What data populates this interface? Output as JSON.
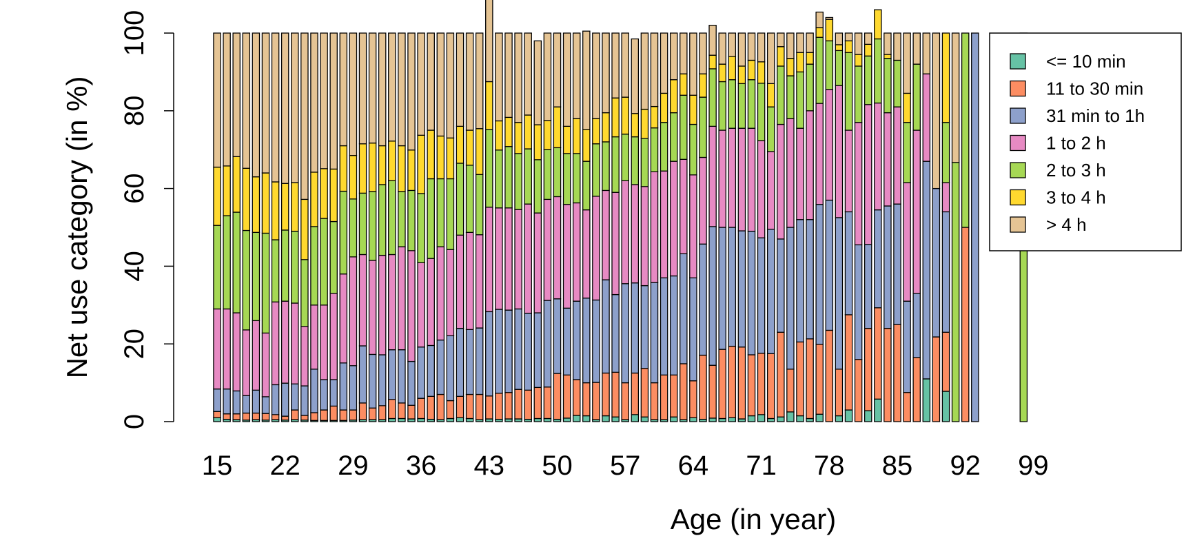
{
  "chart_data": {
    "type": "bar",
    "stacked": true,
    "xlabel": "Age (in year)",
    "ylabel": "Net use category (in %)",
    "ylim": [
      0,
      100
    ],
    "y_ticks": [
      0,
      20,
      40,
      60,
      80,
      100
    ],
    "x_tick_labels": [
      "15",
      "22",
      "29",
      "36",
      "43",
      "50",
      "57",
      "64",
      "71",
      "78",
      "85",
      "92",
      "99"
    ],
    "categories": [
      15,
      16,
      17,
      18,
      19,
      20,
      21,
      22,
      23,
      24,
      25,
      26,
      27,
      28,
      29,
      30,
      31,
      32,
      33,
      34,
      35,
      36,
      37,
      38,
      39,
      40,
      41,
      42,
      43,
      44,
      45,
      46,
      47,
      48,
      49,
      50,
      51,
      52,
      53,
      54,
      55,
      56,
      57,
      58,
      59,
      60,
      61,
      62,
      63,
      64,
      65,
      66,
      67,
      68,
      69,
      70,
      71,
      72,
      73,
      74,
      75,
      76,
      77,
      78,
      79,
      80,
      81,
      82,
      83,
      84,
      85,
      86,
      87,
      88,
      89,
      90,
      91,
      92,
      93,
      94,
      95,
      96,
      97,
      98,
      99
    ],
    "grid": false,
    "legend_position": "right",
    "series": [
      {
        "name": "<= 10 min",
        "color": "#66C2A5",
        "values": [
          1.0,
          0.6,
          0.5,
          0.4,
          0.5,
          0.4,
          0.5,
          0.4,
          0.5,
          0.4,
          0.3,
          0.3,
          0.3,
          0.3,
          0.4,
          0.5,
          0.5,
          0.5,
          0.8,
          0.8,
          0.7,
          0.8,
          0.6,
          0.5,
          0.8,
          1.0,
          0.8,
          0.5,
          0.7,
          0.6,
          0.7,
          0.7,
          0.6,
          0.8,
          0.8,
          0.6,
          0.9,
          1.6,
          1.5,
          0.5,
          1.5,
          1.2,
          0.5,
          1.8,
          1.2,
          0.5,
          0.5,
          1.2,
          0.5,
          1.0,
          0.6,
          0.9,
          0.8,
          1.0,
          0.7,
          1.5,
          1.8,
          0.8,
          1.2,
          2.5,
          1.5,
          0.8,
          1.9,
          0,
          1.5,
          3.0,
          0,
          2.8,
          5.8,
          0,
          0,
          0,
          0,
          11.0,
          0,
          7.8,
          0,
          0,
          0,
          0,
          0,
          0,
          0,
          0,
          0
        ]
      },
      {
        "name": "11 to 30 min",
        "color": "#FC8D62",
        "values": [
          1.6,
          1.4,
          1.5,
          1.8,
          1.7,
          1.7,
          1.3,
          1.0,
          2.5,
          1.2,
          2.0,
          2.7,
          3.7,
          2.7,
          2.6,
          4.3,
          3.0,
          3.6,
          4.9,
          4.0,
          3.5,
          5.2,
          5.9,
          6.5,
          4.6,
          5.5,
          6.2,
          6.5,
          5.9,
          6.7,
          6.8,
          7.6,
          7.5,
          8.0,
          8.1,
          11.8,
          11.1,
          9.2,
          8.5,
          9.6,
          11.0,
          11.5,
          9.5,
          10.7,
          12.5,
          9.5,
          11.5,
          10.8,
          14.4,
          9.5,
          16.5,
          13.6,
          17.8,
          18.4,
          18.5,
          15.7,
          15.8,
          16.7,
          21.8,
          11.0,
          19.0,
          20.5,
          18.0,
          23.5,
          12.0,
          24.5,
          16.0,
          21.2,
          23.5,
          24.0,
          25.0,
          7.5,
          16.5,
          0,
          21.8,
          15.2,
          0,
          50.0,
          0,
          0,
          0,
          0,
          0,
          0,
          0
        ]
      },
      {
        "name": "31 min to 1h",
        "color": "#8DA0CB",
        "values": [
          5.8,
          6.4,
          5.9,
          4.5,
          5.9,
          4.3,
          7.7,
          8.5,
          6.7,
          7.6,
          11.2,
          7.8,
          6.8,
          12.1,
          11.4,
          14.7,
          13.8,
          13.1,
          12.8,
          13.7,
          11.3,
          13.2,
          13.1,
          14.0,
          16.7,
          17.5,
          16.7,
          17.1,
          21.7,
          21.6,
          21.2,
          20.7,
          19.8,
          19.2,
          22.3,
          19.2,
          17.2,
          20.2,
          21.8,
          21.2,
          24.0,
          20.0,
          25.5,
          23.2,
          21.3,
          25.8,
          25.0,
          25.5,
          28.3,
          26.5,
          28.6,
          35.7,
          31.4,
          30.6,
          29.9,
          31.8,
          29.7,
          32.0,
          24.0,
          36.5,
          31.5,
          30.7,
          36.0,
          33.5,
          39.0,
          26.5,
          29.5,
          21.6,
          25.2,
          31.5,
          31.0,
          23.5,
          16.5,
          56.0,
          38.2,
          31.0,
          0,
          0,
          100.0,
          0,
          0,
          0,
          0,
          0,
          0
        ]
      },
      {
        "name": "1 to 2 h",
        "color": "#E78AC3",
        "values": [
          20.6,
          20.6,
          20.1,
          16.9,
          17.9,
          16.4,
          21.3,
          21.1,
          20.8,
          15.3,
          16.5,
          19.2,
          22.2,
          22.9,
          28.0,
          23.5,
          24.2,
          25.6,
          24.5,
          26.5,
          28.5,
          21.7,
          22.4,
          24.0,
          22.2,
          24.0,
          25.0,
          24.0,
          26.9,
          26.1,
          26.3,
          25.6,
          28.1,
          25.7,
          26.0,
          26.3,
          26.7,
          25.3,
          22.7,
          26.7,
          23.0,
          26.3,
          26.5,
          25.3,
          25.5,
          28.5,
          27.5,
          29.5,
          24.3,
          26.5,
          22.3,
          25.8,
          25.0,
          25.5,
          26.4,
          26.5,
          25.0,
          20.0,
          29.5,
          28.0,
          23.5,
          28.0,
          26.0,
          28.5,
          34.0,
          21.0,
          31.5,
          36.0,
          27.5,
          24.0,
          25.0,
          30.5,
          42.0,
          22.5,
          0,
          7.5,
          0,
          0,
          0,
          0,
          0,
          0,
          0,
          0,
          0
        ]
      },
      {
        "name": "2 to 3 h",
        "color": "#A6D854",
        "values": [
          21.5,
          24.0,
          25.9,
          25.6,
          22.7,
          25.7,
          16.0,
          18.3,
          18.5,
          17.2,
          20.2,
          22.3,
          18.5,
          21.3,
          14.9,
          15.8,
          17.7,
          18.2,
          19.0,
          14.2,
          15.5,
          17.8,
          20.5,
          17.5,
          18.2,
          18.5,
          17.3,
          15.5,
          20.0,
          14.9,
          15.8,
          14.4,
          14.2,
          13.7,
          12.8,
          12.6,
          13.1,
          12.7,
          12.5,
          13.5,
          12.5,
          14.3,
          12.0,
          12.3,
          12.4,
          11.3,
          12.5,
          12.5,
          16.5,
          13.0,
          15.5,
          14.8,
          12.5,
          12.5,
          11.5,
          12.5,
          14.8,
          11.5,
          15.0,
          11.0,
          14.5,
          12.0,
          17.0,
          12.5,
          9.0,
          20.0,
          14.5,
          12.5,
          16.5,
          14.0,
          12.0,
          15.5,
          17.0,
          0,
          0,
          15.5,
          66.7,
          50.0,
          0,
          0,
          0,
          0,
          0,
          100.0,
          0
        ]
      },
      {
        "name": "3 to 4 h",
        "color": "#FFD92F",
        "values": [
          15.0,
          12.8,
          14.3,
          16.0,
          14.3,
          15.5,
          14.9,
          12.0,
          12.5,
          15.5,
          14.0,
          12.8,
          13.5,
          11.7,
          11.2,
          12.7,
          12.5,
          10.0,
          10.2,
          11.8,
          10.4,
          15.0,
          12.5,
          11.0,
          10.5,
          9.5,
          9.0,
          11.8,
          12.3,
          7.5,
          7.5,
          8.0,
          8.7,
          9.0,
          7.5,
          10.5,
          7.0,
          9.0,
          8.2,
          6.5,
          7.5,
          10.0,
          9.5,
          6.0,
          7.5,
          5.5,
          7.5,
          8.5,
          5.5,
          7.5,
          6.0,
          3.5,
          4.5,
          6.0,
          4.5,
          5.0,
          5.5,
          6.0,
          5.0,
          4.5,
          5.0,
          3.0,
          2.5,
          5.5,
          1.5,
          3.0,
          3.0,
          3.0,
          7.5,
          1.0,
          0,
          7.5,
          0,
          0,
          0,
          23.0,
          0,
          0,
          0,
          0,
          0,
          0,
          0,
          0,
          0
        ]
      },
      {
        "name": "> 4 h",
        "color": "#E5C494",
        "values": [
          34.5,
          34.2,
          31.8,
          34.8,
          37.0,
          36.0,
          38.3,
          38.7,
          38.5,
          42.8,
          35.8,
          34.9,
          35.0,
          29.0,
          31.5,
          28.5,
          28.3,
          29.0,
          27.8,
          29.0,
          30.1,
          26.3,
          25.0,
          26.5,
          27.0,
          24.0,
          25.0,
          24.6,
          22.5,
          22.6,
          21.7,
          23.0,
          21.1,
          21.6,
          22.5,
          19.0,
          24.0,
          22.0,
          25.3,
          22.0,
          20.5,
          16.7,
          16.5,
          19.2,
          19.6,
          18.9,
          15.5,
          12.0,
          10.5,
          16.0,
          10.5,
          7.7,
          8.0,
          6.0,
          8.5,
          7.0,
          7.4,
          13.0,
          3.5,
          6.5,
          5.0,
          5.0,
          4.0,
          0.5,
          3.0,
          2.0,
          5.5,
          2.9,
          0,
          5.5,
          7.0,
          15.5,
          8.0,
          10.5,
          40.0,
          0,
          33.3,
          0,
          0,
          0,
          0,
          0,
          0,
          0,
          0
        ]
      }
    ]
  }
}
